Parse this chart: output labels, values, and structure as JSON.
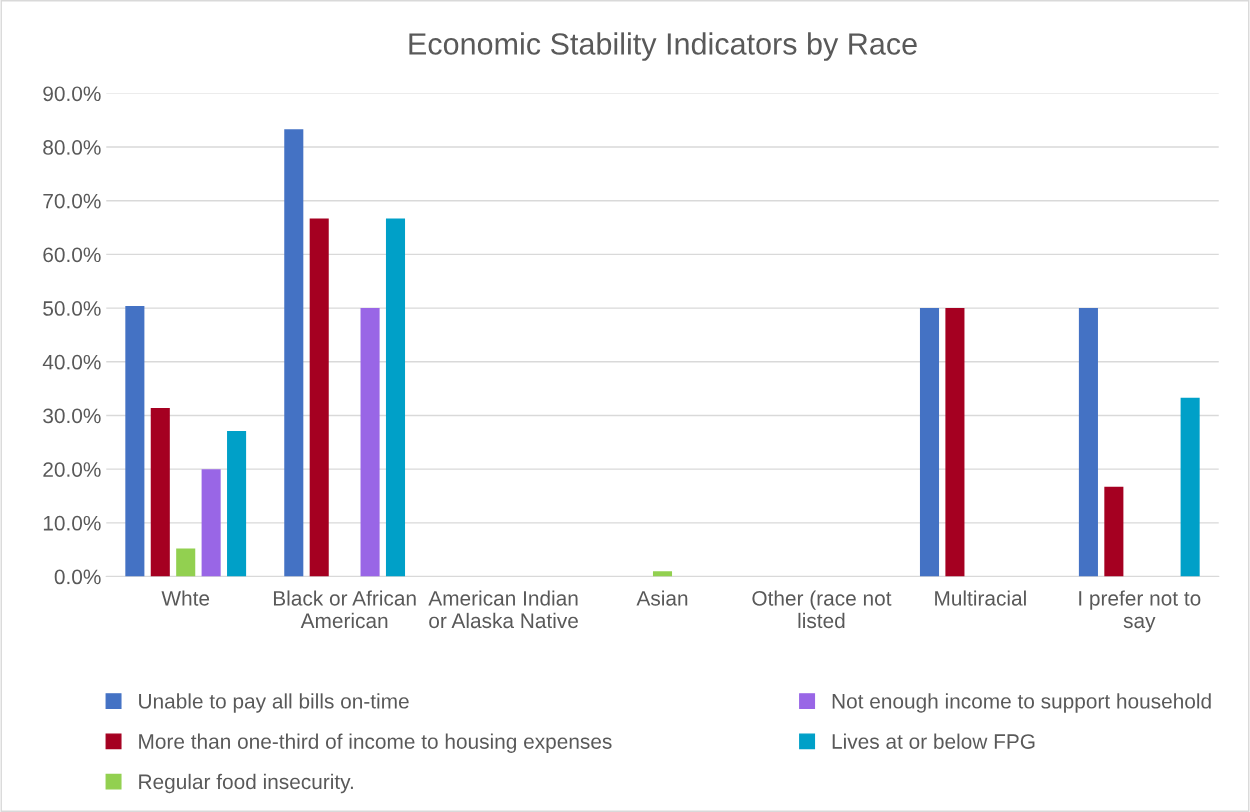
{
  "chart_data": {
    "type": "bar",
    "title": "Economic Stability Indicators by Race",
    "categories": [
      "Whte",
      "Black or African\nAmerican",
      "American Indian\nor Alaska Native",
      "Asian",
      "Other (race not\nlisted",
      "Multiracial",
      "I prefer not to\nsay"
    ],
    "series": [
      {
        "name": "Unable to pay all bills on-time",
        "color": "#4472c4",
        "values": [
          50.4,
          83.3,
          0,
          0,
          0,
          50.0,
          50.0
        ]
      },
      {
        "name": "More than one-third of income to housing expenses",
        "color": "#a50021",
        "values": [
          31.4,
          66.7,
          0,
          0,
          0,
          50.0,
          16.7
        ]
      },
      {
        "name": "Regular food insecurity.",
        "color": "#92d050",
        "values": [
          5.2,
          0,
          0,
          1.0,
          0,
          0,
          0
        ]
      },
      {
        "name": "Not enough income to support household",
        "color": "#9966e6",
        "values": [
          20.0,
          50.0,
          0,
          0,
          0,
          0,
          0
        ]
      },
      {
        "name": "Lives at or below FPG",
        "color": "#00a0c8",
        "values": [
          27.1,
          66.7,
          0,
          0,
          0,
          0,
          33.3
        ]
      }
    ],
    "ylim": [
      0,
      90
    ],
    "yticks": [
      {
        "value": 0,
        "label": "0.0%"
      },
      {
        "value": 10,
        "label": "10.0%"
      },
      {
        "value": 20,
        "label": "20.0%"
      },
      {
        "value": 30,
        "label": "30.0%"
      },
      {
        "value": 40,
        "label": "40.0%"
      },
      {
        "value": 50,
        "label": "50.0%"
      },
      {
        "value": 60,
        "label": "60.0%"
      },
      {
        "value": 70,
        "label": "70.0%"
      },
      {
        "value": 80,
        "label": "80.0%"
      },
      {
        "value": 90,
        "label": "90.0%"
      }
    ],
    "grid": "y",
    "legend": "bottom"
  }
}
